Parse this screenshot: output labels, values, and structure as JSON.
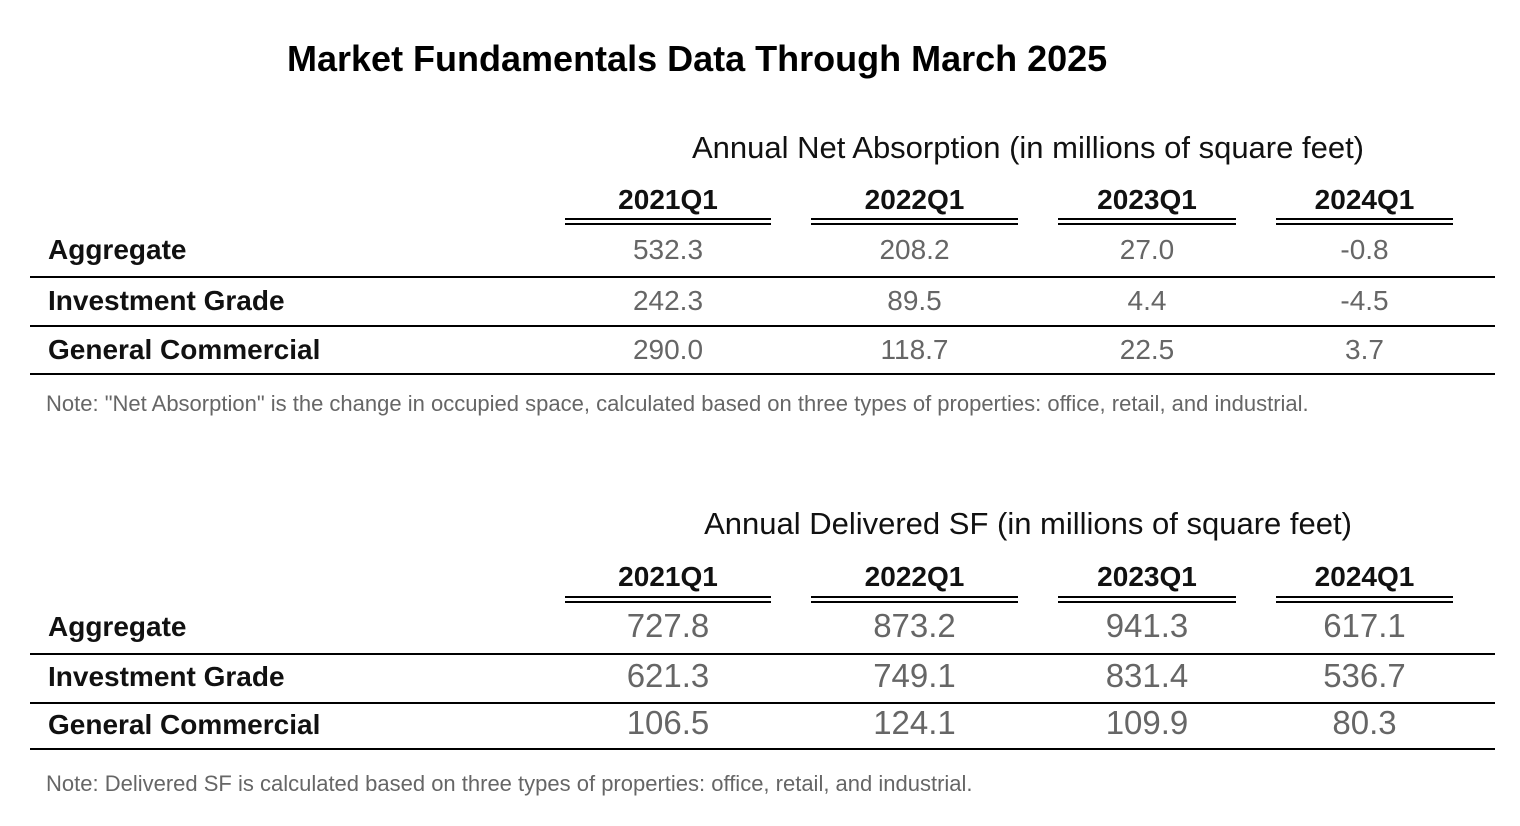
{
  "title": "Market Fundamentals Data Through March 2025",
  "tables": [
    {
      "heading": "Annual Net Absorption (in millions of square feet)",
      "columns": [
        "2021Q1",
        "2022Q1",
        "2023Q1",
        "2024Q1"
      ],
      "rows": [
        {
          "label": "Aggregate",
          "values": [
            "532.3",
            "208.2",
            "27.0",
            "-0.8"
          ]
        },
        {
          "label": "Investment Grade",
          "values": [
            "242.3",
            "89.5",
            "4.4",
            "-4.5"
          ]
        },
        {
          "label": "General Commercial",
          "values": [
            "290.0",
            "118.7",
            "22.5",
            "3.7"
          ]
        }
      ],
      "note": "Note: \"Net Absorption\" is the change in occupied space, calculated based on three types of properties: office, retail, and industrial."
    },
    {
      "heading": "Annual Delivered SF (in millions of square feet)",
      "columns": [
        "2021Q1",
        "2022Q1",
        "2023Q1",
        "2024Q1"
      ],
      "rows": [
        {
          "label": "Aggregate",
          "values": [
            "727.8",
            "873.2",
            "941.3",
            "617.1"
          ]
        },
        {
          "label": "Investment Grade",
          "values": [
            "621.3",
            "749.1",
            "831.4",
            "536.7"
          ]
        },
        {
          "label": "General Commercial",
          "values": [
            "106.5",
            "124.1",
            "109.9",
            "80.3"
          ]
        }
      ],
      "note": "Note: Delivered SF is calculated based on three types of properties: office, retail, and industrial."
    }
  ]
}
